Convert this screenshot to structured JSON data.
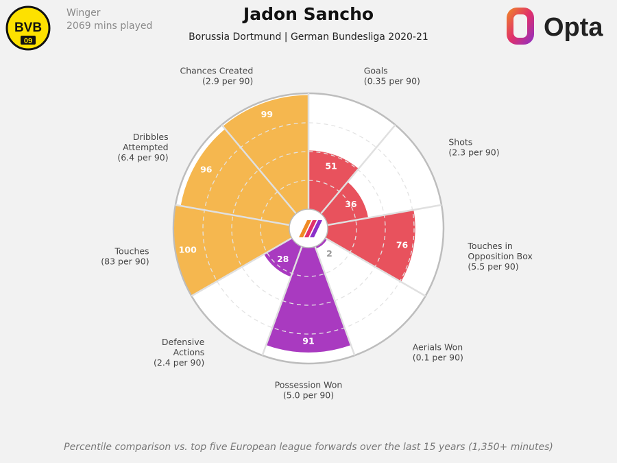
{
  "player": {
    "position": "Winger",
    "minutes": "2069 mins played",
    "name": "Jadon Sancho",
    "context": "Borussia Dortmund | German Bundesliga 2020-21"
  },
  "club_badge": {
    "text": "BVB",
    "sub": "09",
    "color": "#fde100"
  },
  "provider": {
    "name": "Opta"
  },
  "footnote": "Percentile comparison vs. top five European league forwards over the last 15 years (1,350+ minutes)",
  "colors": {
    "attacking": "#e8525d",
    "defending": "#a93ac0",
    "possession": "#f5b74f",
    "background": "#f2f2f2",
    "empty": "#ffffff"
  },
  "chart_data": {
    "type": "pie",
    "subtype": "polar-percentile",
    "range": [
      0,
      100
    ],
    "start": "top, clockwise",
    "categories": [
      {
        "name": "Goals",
        "label": [
          "Goals",
          "(0.35 per 90)"
        ],
        "value": 51,
        "group": "attacking"
      },
      {
        "name": "Shots",
        "label": [
          "Shots",
          "(2.3 per 90)"
        ],
        "value": 36,
        "group": "attacking"
      },
      {
        "name": "Touches in Opposition Box",
        "label": [
          "Touches in",
          "Opposition Box",
          "(5.5 per 90)"
        ],
        "value": 76,
        "group": "attacking"
      },
      {
        "name": "Aerials Won",
        "label": [
          "Aerials Won",
          "(0.1 per 90)"
        ],
        "value": 2,
        "group": "defending"
      },
      {
        "name": "Possession Won",
        "label": [
          "Possession Won",
          "(5.0 per 90)"
        ],
        "value": 91,
        "group": "defending"
      },
      {
        "name": "Defensive Actions",
        "label": [
          "Defensive",
          "Actions",
          "(2.4 per 90)"
        ],
        "value": 28,
        "group": "defending"
      },
      {
        "name": "Touches",
        "label": [
          "Touches",
          "(83 per 90)"
        ],
        "value": 100,
        "group": "possession"
      },
      {
        "name": "Dribbles Attempted",
        "label": [
          "Dribbles",
          "Attempted",
          "(6.4 per 90)"
        ],
        "value": 96,
        "group": "possession"
      },
      {
        "name": "Chances Created",
        "label": [
          "Chances Created",
          "(2.9 per 90)"
        ],
        "value": 99,
        "group": "possession"
      }
    ]
  }
}
